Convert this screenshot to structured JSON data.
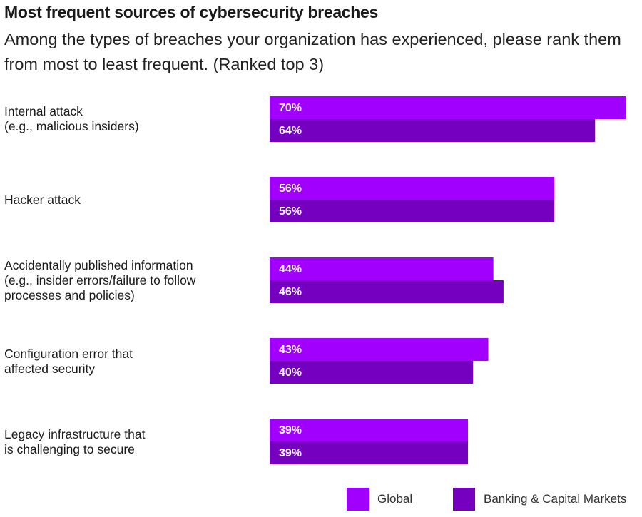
{
  "header": {
    "title": "Most frequent sources of cybersecurity breaches",
    "subtitle": "Among the types of breaches your organization has experienced, please rank them from most to least frequent. (Ranked top 3)"
  },
  "chart_data": {
    "type": "bar",
    "orientation": "horizontal",
    "categories": [
      [
        "Internal attack",
        "(e.g., malicious insiders)"
      ],
      [
        "Hacker attack"
      ],
      [
        "Accidentally published information",
        "(e.g., insider errors/failure to follow",
        "processes and policies)"
      ],
      [
        "Configuration error that",
        "affected security"
      ],
      [
        "Legacy infrastructure that",
        "is challenging to secure"
      ]
    ],
    "series": [
      {
        "name": "Global",
        "values": [
          70,
          56,
          44,
          43,
          39
        ],
        "labels": [
          "70%",
          "56%",
          "44%",
          "43%",
          "39%"
        ],
        "color": "#A100FF"
      },
      {
        "name": "Banking & Capital Markets",
        "values": [
          64,
          56,
          46,
          40,
          39
        ],
        "labels": [
          "64%",
          "56%",
          "46%",
          "40%",
          "39%"
        ],
        "color": "#7500C0"
      }
    ],
    "xlim": [
      0,
      70
    ],
    "grid": false,
    "legend_position": "bottom-right"
  }
}
